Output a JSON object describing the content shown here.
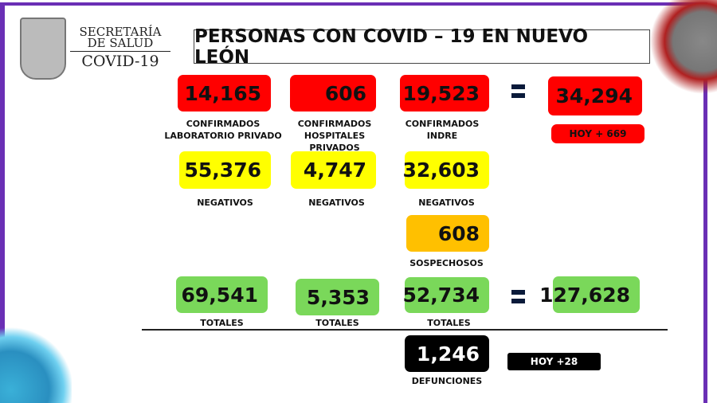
{
  "header": {
    "org_line1": "SECRETARÍA",
    "org_line2": "DE SALUD",
    "subtitle": "COVID-19",
    "title": "PERSONAS CON COVID – 19 EN NUEVO LEÓN"
  },
  "confirmed": {
    "lab_privado": "14,165",
    "lab_privado_label": "CONFIRMADOS LABORATORIO PRIVADO",
    "hosp_privados": "606",
    "hosp_privados_label": "CONFIRMADOS HOSPITALES PRIVADOS",
    "indre": "19,523",
    "indre_label": "CONFIRMADOS INDRE",
    "total": "34,294",
    "today": "HOY + 669"
  },
  "negatives": {
    "values": [
      "55,376",
      "4,747",
      "32,603"
    ],
    "label": "NEGATIVOS"
  },
  "suspects": {
    "value": "608",
    "label": "SOSPECHOSOS"
  },
  "totals": {
    "values": [
      "69,541",
      "5,353",
      "52,734"
    ],
    "label": "TOTALES",
    "grand_total": "127,628"
  },
  "deaths": {
    "value": "1,246",
    "label": "DEFUNCIONES",
    "today": "HOY +28"
  },
  "colors": {
    "confirmed": "#ff0000",
    "negative": "#ffff00",
    "suspect": "#ffc000",
    "total": "#7ad85a",
    "deaths": "#000000",
    "frame": "#6a2fb5"
  }
}
